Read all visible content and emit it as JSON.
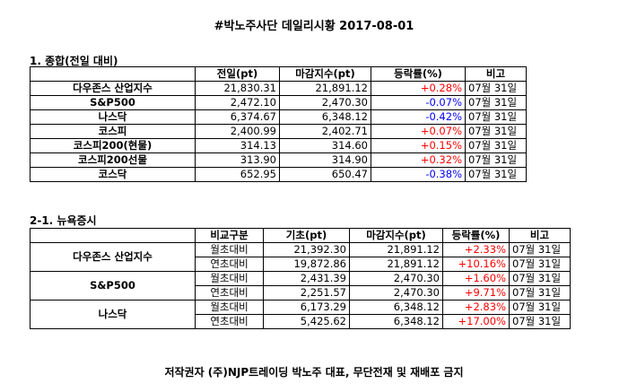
{
  "title": "#박노주사단 데일리시황 2017-08-01",
  "section1": {
    "heading": "1. 종합(전일 대비)",
    "headers": [
      "",
      "전일(pt)",
      "마감지수(pt)",
      "등락률(%)",
      "비고"
    ],
    "rows": [
      {
        "name": "다우존스 산업지수",
        "prev": "21,830.31",
        "close": "21,891.12",
        "change": "+0.28%",
        "note": "07월 31일"
      },
      {
        "name": "S&P500",
        "prev": "2,472.10",
        "close": "2,470.30",
        "change": "-0.07%",
        "note": "07월 31일"
      },
      {
        "name": "나스닥",
        "prev": "6,374.67",
        "close": "6,348.12",
        "change": "-0.42%",
        "note": "07월 31일"
      },
      {
        "name": "코스피",
        "prev": "2,400.99",
        "close": "2,402.71",
        "change": "+0.07%",
        "note": "07월 31일"
      },
      {
        "name": "코스피200(현물)",
        "prev": "314.13",
        "close": "314.60",
        "change": "+0.15%",
        "note": "07월 31일"
      },
      {
        "name": "코스피200선물",
        "prev": "313.90",
        "close": "314.90",
        "change": "+0.32%",
        "note": "07월 31일"
      },
      {
        "name": "코스닥",
        "prev": "652.95",
        "close": "650.47",
        "change": "-0.38%",
        "note": "07월 31일"
      }
    ]
  },
  "section2": {
    "heading": "2-1. 뉴욕증시",
    "headers": [
      "",
      "비교구분",
      "기초(pt)",
      "마감지수(pt)",
      "등락률(%)",
      "비고"
    ],
    "groups": [
      {
        "name": "다우존스 산업지수",
        "rows": [
          {
            "type": "월초대비",
            "base": "21,392.30",
            "close": "21,891.12",
            "change": "+2.33%",
            "note": "07월 31일"
          },
          {
            "type": "연초대비",
            "base": "19,872.86",
            "close": "21,891.12",
            "change": "+10.16%",
            "note": "07월 31일"
          }
        ]
      },
      {
        "name": "S&P500",
        "rows": [
          {
            "type": "월초대비",
            "base": "2,431.39",
            "close": "2,470.30",
            "change": "+1.60%",
            "note": "07월 31일"
          },
          {
            "type": "연초대비",
            "base": "2,251.57",
            "close": "2,470.30",
            "change": "+9.71%",
            "note": "07월 31일"
          }
        ]
      },
      {
        "name": "나스닥",
        "rows": [
          {
            "type": "월초대비",
            "base": "6,173.29",
            "close": "6,348.12",
            "change": "+2.83%",
            "note": "07월 31일"
          },
          {
            "type": "연초대비",
            "base": "5,425.62",
            "close": "6,348.12",
            "change": "+17.00%",
            "note": "07월 31일"
          }
        ]
      }
    ]
  },
  "footer": "저작권자 (주)NJP트레이딩 박노주 대표, 무단전재 및 재배포 금지",
  "colors": {
    "positive": "#ff0000",
    "negative": "#0000ff"
  }
}
